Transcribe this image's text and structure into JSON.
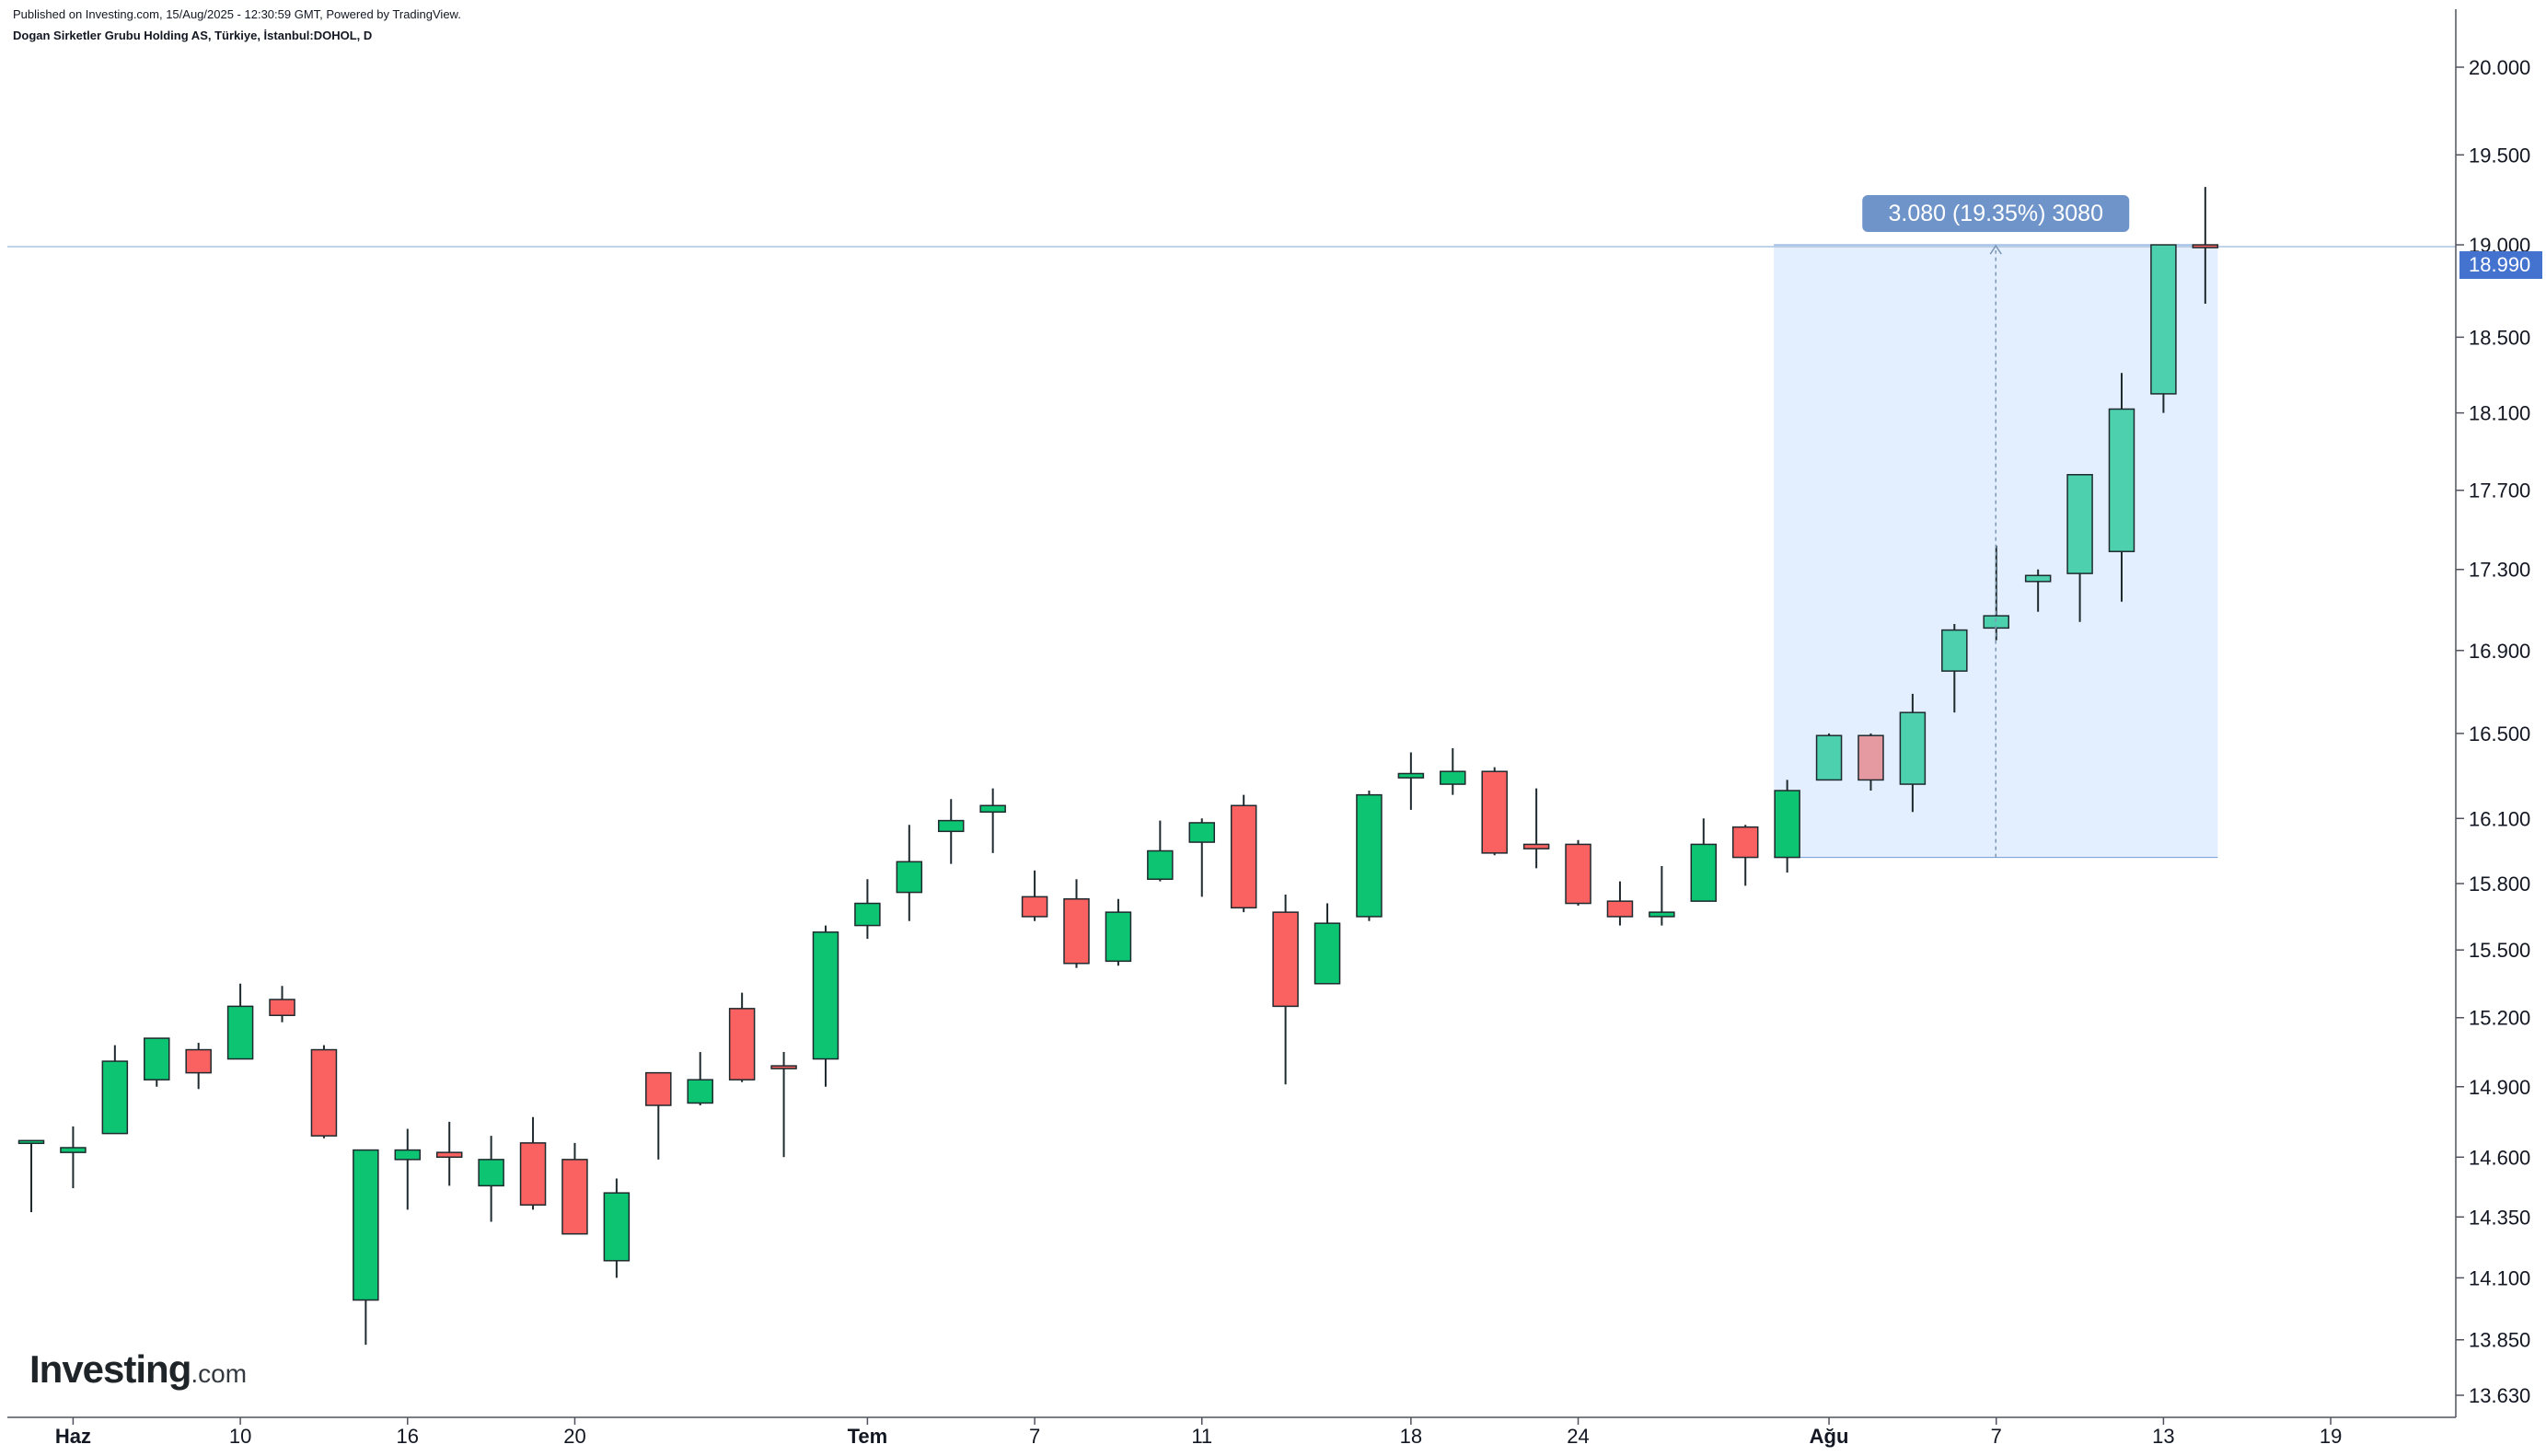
{
  "header": {
    "published": "Published on Investing.com, 15/Aug/2025 - 12:30:59 GMT, Powered by TradingView.",
    "instrument": "Dogan Sirketler Grubu Holding AS, Türkiye, İstanbul:DOHOL, D"
  },
  "logo": {
    "brand": "Investing",
    "domain": ".com"
  },
  "colors": {
    "up": "#0cc472",
    "down": "#fa6261",
    "up_highlight": "#4dd0ad",
    "down_highlight": "#e59aa1",
    "range_fill": "#e3efff",
    "price_line": "#aac4e0",
    "measure_label_bg": "#6e94c9",
    "last_price_bg": "#4472cf"
  },
  "chart_data": {
    "type": "candlestick",
    "y_scale": "log",
    "y_ticks": [
      "20.000",
      "19.500",
      "19.000",
      "18.500",
      "18.100",
      "17.700",
      "17.300",
      "16.900",
      "16.500",
      "16.100",
      "15.800",
      "15.500",
      "15.200",
      "14.900",
      "14.600",
      "14.350",
      "14.100",
      "13.850",
      "13.630"
    ],
    "y_tick_values": [
      20.0,
      19.5,
      19.0,
      18.5,
      18.1,
      17.7,
      17.3,
      16.9,
      16.5,
      16.1,
      15.8,
      15.5,
      15.2,
      14.9,
      14.6,
      14.35,
      14.1,
      13.85,
      13.63
    ],
    "x_ticks": [
      {
        "label": "Haz",
        "date": "2025-06-02",
        "bold": true
      },
      {
        "label": "10",
        "date": "2025-06-10",
        "bold": false
      },
      {
        "label": "16",
        "date": "2025-06-16",
        "bold": false
      },
      {
        "label": "20",
        "date": "2025-06-20",
        "bold": false
      },
      {
        "label": "Tem",
        "date": "2025-07-01",
        "bold": true
      },
      {
        "label": "7",
        "date": "2025-07-07",
        "bold": false
      },
      {
        "label": "11",
        "date": "2025-07-11",
        "bold": false
      },
      {
        "label": "18",
        "date": "2025-07-18",
        "bold": false
      },
      {
        "label": "24",
        "date": "2025-07-24",
        "bold": false
      },
      {
        "label": "Ağu",
        "date": "2025-08-01",
        "bold": true
      },
      {
        "label": "7",
        "date": "2025-08-07",
        "bold": false
      },
      {
        "label": "13",
        "date": "2025-08-13",
        "bold": false
      },
      {
        "label": "19",
        "date": "2025-08-19",
        "bold": false
      }
    ],
    "candles": [
      {
        "date": "2025-05-30",
        "o": 14.66,
        "h": 14.67,
        "l": 14.37,
        "c": 14.67
      },
      {
        "date": "2025-06-02",
        "o": 14.62,
        "h": 14.73,
        "l": 14.47,
        "c": 14.64
      },
      {
        "date": "2025-06-03",
        "o": 14.7,
        "h": 15.08,
        "l": 14.7,
        "c": 15.01
      },
      {
        "date": "2025-06-04",
        "o": 14.93,
        "h": 15.11,
        "l": 14.9,
        "c": 15.11
      },
      {
        "date": "2025-06-05",
        "o": 15.06,
        "h": 15.09,
        "l": 14.89,
        "c": 14.96
      },
      {
        "date": "2025-06-10",
        "o": 15.02,
        "h": 15.35,
        "l": 15.02,
        "c": 15.25
      },
      {
        "date": "2025-06-11",
        "o": 15.28,
        "h": 15.34,
        "l": 15.18,
        "c": 15.21
      },
      {
        "date": "2025-06-12",
        "o": 15.06,
        "h": 15.08,
        "l": 14.68,
        "c": 14.69
      },
      {
        "date": "2025-06-13",
        "o": 14.01,
        "h": 14.63,
        "l": 13.83,
        "c": 14.63
      },
      {
        "date": "2025-06-16",
        "o": 14.59,
        "h": 14.72,
        "l": 14.38,
        "c": 14.63
      },
      {
        "date": "2025-06-17",
        "o": 14.62,
        "h": 14.75,
        "l": 14.48,
        "c": 14.6
      },
      {
        "date": "2025-06-18",
        "o": 14.48,
        "h": 14.69,
        "l": 14.33,
        "c": 14.59
      },
      {
        "date": "2025-06-19",
        "o": 14.66,
        "h": 14.77,
        "l": 14.38,
        "c": 14.4
      },
      {
        "date": "2025-06-20",
        "o": 14.59,
        "h": 14.66,
        "l": 14.28,
        "c": 14.28
      },
      {
        "date": "2025-06-23",
        "o": 14.17,
        "h": 14.51,
        "l": 14.1,
        "c": 14.45
      },
      {
        "date": "2025-06-24",
        "o": 14.96,
        "h": 14.96,
        "l": 14.59,
        "c": 14.82
      },
      {
        "date": "2025-06-25",
        "o": 14.83,
        "h": 15.05,
        "l": 14.82,
        "c": 14.93
      },
      {
        "date": "2025-06-26",
        "o": 15.24,
        "h": 15.31,
        "l": 14.92,
        "c": 14.93
      },
      {
        "date": "2025-06-27",
        "o": 14.99,
        "h": 15.05,
        "l": 14.6,
        "c": 14.98
      },
      {
        "date": "2025-06-30",
        "o": 15.02,
        "h": 15.61,
        "l": 14.9,
        "c": 15.58
      },
      {
        "date": "2025-07-01",
        "o": 15.61,
        "h": 15.82,
        "l": 15.55,
        "c": 15.71
      },
      {
        "date": "2025-07-02",
        "o": 15.76,
        "h": 16.07,
        "l": 15.63,
        "c": 15.9
      },
      {
        "date": "2025-07-03",
        "o": 16.04,
        "h": 16.19,
        "l": 15.89,
        "c": 16.09
      },
      {
        "date": "2025-07-04",
        "o": 16.13,
        "h": 16.24,
        "l": 15.94,
        "c": 16.16
      },
      {
        "date": "2025-07-07",
        "o": 15.74,
        "h": 15.86,
        "l": 15.63,
        "c": 15.65
      },
      {
        "date": "2025-07-08",
        "o": 15.73,
        "h": 15.82,
        "l": 15.42,
        "c": 15.44
      },
      {
        "date": "2025-07-09",
        "o": 15.45,
        "h": 15.73,
        "l": 15.43,
        "c": 15.67
      },
      {
        "date": "2025-07-10",
        "o": 15.82,
        "h": 16.09,
        "l": 15.81,
        "c": 15.95
      },
      {
        "date": "2025-07-11",
        "o": 15.99,
        "h": 16.1,
        "l": 15.74,
        "c": 16.08
      },
      {
        "date": "2025-07-14",
        "o": 16.16,
        "h": 16.21,
        "l": 15.67,
        "c": 15.69
      },
      {
        "date": "2025-07-15",
        "o": 15.67,
        "h": 15.75,
        "l": 14.91,
        "c": 15.25
      },
      {
        "date": "2025-07-16",
        "o": 15.35,
        "h": 15.71,
        "l": 15.35,
        "c": 15.62
      },
      {
        "date": "2025-07-17",
        "o": 15.65,
        "h": 16.23,
        "l": 15.63,
        "c": 16.21
      },
      {
        "date": "2025-07-18",
        "o": 16.29,
        "h": 16.41,
        "l": 16.14,
        "c": 16.31
      },
      {
        "date": "2025-07-21",
        "o": 16.26,
        "h": 16.43,
        "l": 16.21,
        "c": 16.32
      },
      {
        "date": "2025-07-22",
        "o": 16.32,
        "h": 16.34,
        "l": 15.93,
        "c": 15.94
      },
      {
        "date": "2025-07-23",
        "o": 15.98,
        "h": 16.24,
        "l": 15.87,
        "c": 15.96
      },
      {
        "date": "2025-07-24",
        "o": 15.98,
        "h": 16.0,
        "l": 15.7,
        "c": 15.71
      },
      {
        "date": "2025-07-25",
        "o": 15.72,
        "h": 15.81,
        "l": 15.61,
        "c": 15.65
      },
      {
        "date": "2025-07-28",
        "o": 15.65,
        "h": 15.88,
        "l": 15.61,
        "c": 15.67
      },
      {
        "date": "2025-07-29",
        "o": 15.72,
        "h": 16.1,
        "l": 15.72,
        "c": 15.98
      },
      {
        "date": "2025-07-30",
        "o": 16.06,
        "h": 16.07,
        "l": 15.79,
        "c": 15.92
      },
      {
        "date": "2025-07-31",
        "o": 15.92,
        "h": 16.28,
        "l": 15.85,
        "c": 16.23
      },
      {
        "date": "2025-08-01",
        "o": 16.28,
        "h": 16.5,
        "l": 16.28,
        "c": 16.49
      },
      {
        "date": "2025-08-04",
        "o": 16.49,
        "h": 16.5,
        "l": 16.23,
        "c": 16.28
      },
      {
        "date": "2025-08-05",
        "o": 16.26,
        "h": 16.69,
        "l": 16.13,
        "c": 16.6
      },
      {
        "date": "2025-08-06",
        "o": 16.8,
        "h": 17.03,
        "l": 16.6,
        "c": 17.0
      },
      {
        "date": "2025-08-07",
        "o": 17.01,
        "h": 17.42,
        "l": 16.95,
        "c": 17.07
      },
      {
        "date": "2025-08-08",
        "o": 17.24,
        "h": 17.3,
        "l": 17.09,
        "c": 17.27
      },
      {
        "date": "2025-08-11",
        "o": 17.28,
        "h": 17.78,
        "l": 17.04,
        "c": 17.78
      },
      {
        "date": "2025-08-12",
        "o": 17.39,
        "h": 18.31,
        "l": 17.14,
        "c": 18.12
      },
      {
        "date": "2025-08-13",
        "o": 18.2,
        "h": 19.0,
        "l": 18.1,
        "c": 19.0
      },
      {
        "date": "2025-08-14",
        "o": 19.0,
        "h": 19.32,
        "l": 18.68,
        "c": 18.99
      }
    ],
    "last_price": "18.990",
    "last_price_value": 18.99,
    "measure": {
      "label": "3.080 (19.35%) 3080",
      "from_date": "2025-07-31",
      "to_date": "2025-08-14",
      "low": 15.92,
      "high": 19.0,
      "highlight_from": "2025-08-01",
      "highlight_to": "2025-08-13"
    }
  }
}
